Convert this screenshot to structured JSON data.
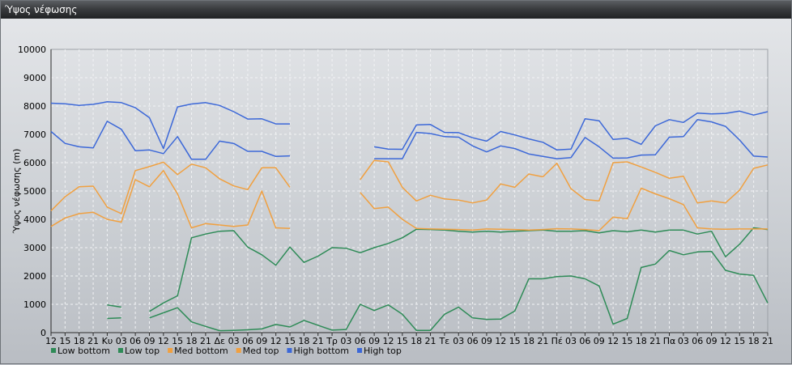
{
  "window": {
    "title": "Ύψος νέφωσης"
  },
  "chart_data": {
    "type": "line",
    "title": "",
    "xlabel": "",
    "ylabel": "Ύψος νέφωσης (m)",
    "ylim": [
      0,
      10000
    ],
    "yticks": [
      0,
      1000,
      2000,
      3000,
      4000,
      5000,
      6000,
      7000,
      8000,
      9000,
      10000
    ],
    "grid": true,
    "legend_position": "bottom-left",
    "categories": [
      "12",
      "15",
      "18",
      "21",
      "Κυ",
      "03",
      "06",
      "09",
      "12",
      "15",
      "18",
      "21",
      "Δε",
      "03",
      "06",
      "09",
      "12",
      "15",
      "18",
      "21",
      "Τρ",
      "03",
      "06",
      "09",
      "12",
      "15",
      "18",
      "21",
      "Τε",
      "03",
      "06",
      "09",
      "12",
      "15",
      "18",
      "21",
      "Πέ",
      "03",
      "06",
      "09",
      "12",
      "15",
      "18",
      "21",
      "Πα",
      "03",
      "06",
      "09",
      "12",
      "15",
      "18",
      "21"
    ],
    "series": [
      {
        "name": "Low bottom",
        "color": "#2e8b57",
        "values": [
          null,
          null,
          null,
          null,
          500,
          520,
          null,
          520,
          700,
          880,
          380,
          220,
          70,
          80,
          100,
          130,
          290,
          200,
          430,
          260,
          90,
          110,
          1000,
          780,
          980,
          650,
          80,
          80,
          650,
          900,
          520,
          470,
          480,
          760,
          1900,
          1900,
          1980,
          2000,
          1900,
          1650,
          300,
          500,
          2300,
          2420,
          2900,
          2750,
          2850,
          2870,
          2200,
          2070,
          2020,
          1050
        ]
      },
      {
        "name": "Low top",
        "color": "#2e8b57",
        "values": [
          null,
          null,
          null,
          null,
          980,
          900,
          null,
          750,
          1050,
          1300,
          3350,
          3480,
          3580,
          3600,
          3020,
          2750,
          2380,
          3020,
          2480,
          2700,
          3000,
          2980,
          2820,
          3000,
          3150,
          3350,
          3650,
          3640,
          3620,
          3580,
          3550,
          3580,
          3550,
          3580,
          3600,
          3620,
          3580,
          3580,
          3600,
          3520,
          3600,
          3560,
          3620,
          3550,
          3620,
          3620,
          3480,
          3580,
          2680,
          3120,
          3700,
          3640
        ]
      },
      {
        "name": "Med bottom",
        "color": "#f0a040",
        "values": [
          3750,
          4050,
          4200,
          4250,
          4000,
          3900,
          5400,
          5150,
          5720,
          4900,
          3700,
          3850,
          3800,
          3750,
          3800,
          5000,
          3700,
          3680,
          null,
          null,
          null,
          null,
          4950,
          4380,
          4430,
          4000,
          3680,
          3660,
          3650,
          3640,
          3620,
          3660,
          3650,
          3640,
          3620,
          3640,
          3670,
          3660,
          3640,
          3600,
          4080,
          4020,
          5100,
          4900,
          4730,
          4520,
          3700,
          3660,
          3650,
          3660,
          3660,
          3660
        ]
      },
      {
        "name": "Med top",
        "color": "#f0a040",
        "values": [
          4300,
          4800,
          5150,
          5170,
          4430,
          4200,
          5720,
          5860,
          6020,
          5580,
          5950,
          5820,
          5430,
          5180,
          5050,
          5820,
          5820,
          5130,
          null,
          null,
          null,
          null,
          5400,
          6080,
          6030,
          5130,
          4650,
          4850,
          4720,
          4680,
          4580,
          4680,
          5250,
          5130,
          5600,
          5500,
          5980,
          5080,
          4700,
          4650,
          6000,
          6030,
          5850,
          5660,
          5450,
          5520,
          4580,
          4650,
          4580,
          5030,
          5800,
          5920
        ]
      },
      {
        "name": "High bottom",
        "color": "#3c68d8",
        "values": [
          7100,
          6680,
          6560,
          6520,
          7460,
          7180,
          6420,
          6450,
          6320,
          6920,
          6120,
          6120,
          6760,
          6680,
          6400,
          6400,
          6220,
          6240,
          null,
          null,
          null,
          null,
          null,
          6140,
          6140,
          6140,
          7070,
          7030,
          6920,
          6900,
          6590,
          6380,
          6590,
          6500,
          6310,
          6220,
          6140,
          6180,
          6890,
          6560,
          6160,
          6170,
          6270,
          6280,
          6900,
          6920,
          7520,
          7440,
          7280,
          6800,
          6230,
          6200
        ]
      },
      {
        "name": "High top",
        "color": "#3c68d8",
        "values": [
          8100,
          8080,
          8020,
          8060,
          8150,
          8120,
          7940,
          7590,
          6500,
          7970,
          8070,
          8120,
          8020,
          7800,
          7540,
          7550,
          7370,
          7370,
          null,
          null,
          null,
          null,
          null,
          6560,
          6480,
          6470,
          7330,
          7350,
          7070,
          7060,
          6880,
          6760,
          7100,
          6980,
          6840,
          6720,
          6450,
          6480,
          7550,
          7480,
          6820,
          6860,
          6650,
          7300,
          7520,
          7420,
          7750,
          7720,
          7740,
          7820,
          7680,
          7800
        ]
      }
    ]
  }
}
